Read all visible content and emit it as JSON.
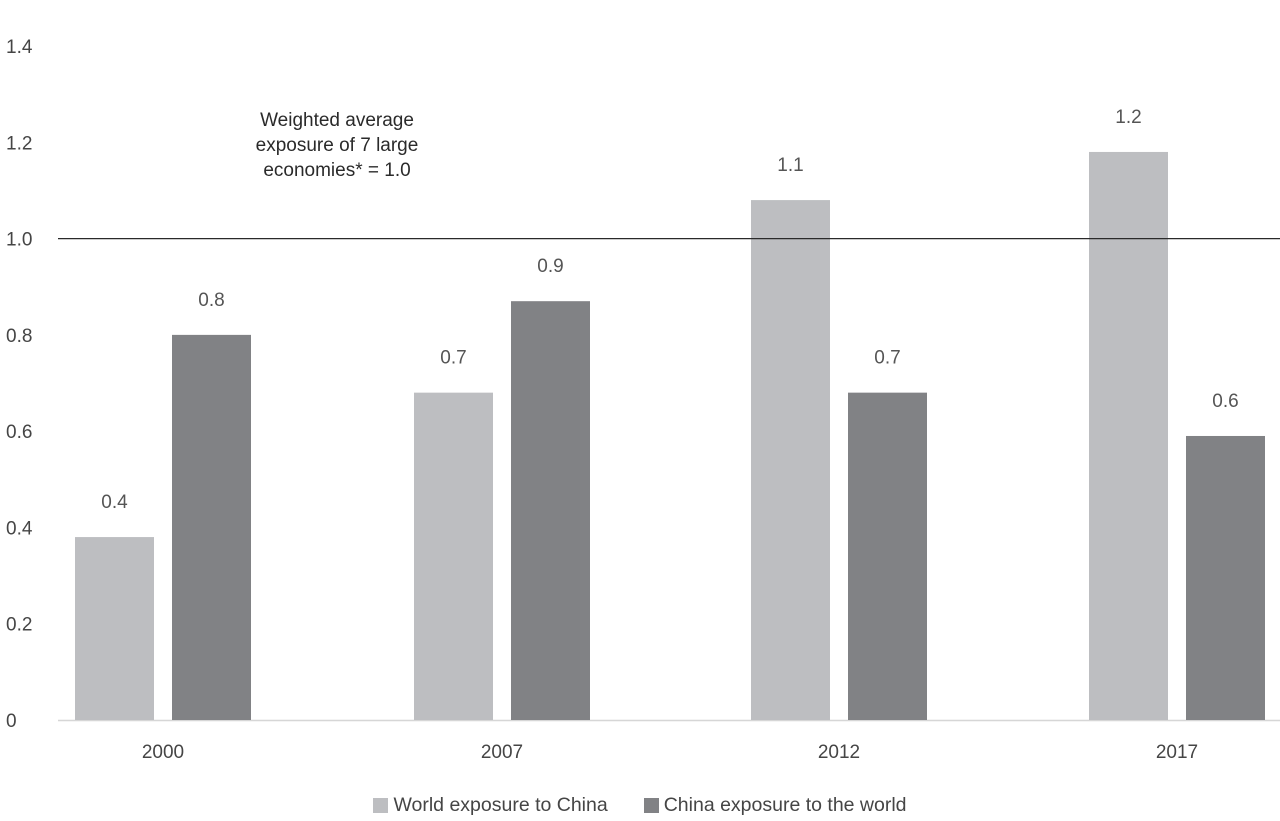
{
  "chart_data": {
    "type": "bar",
    "categories": [
      "2000",
      "2007",
      "2012",
      "2017"
    ],
    "series": [
      {
        "name": "World exposure to China",
        "color": "#bdbec1",
        "values": [
          0.38,
          0.68,
          1.08,
          1.18
        ],
        "labels": [
          "0.4",
          "0.7",
          "1.1",
          "1.2"
        ]
      },
      {
        "name": "China exposure to the world",
        "color": "#818285",
        "values": [
          0.8,
          0.87,
          0.68,
          0.59
        ],
        "labels": [
          "0.8",
          "0.9",
          "0.7",
          "0.6"
        ]
      }
    ],
    "ylim": [
      0,
      1.4
    ],
    "yticks": [
      0,
      0.2,
      0.4,
      0.6,
      0.8,
      1.0,
      1.2,
      1.4
    ],
    "ytick_labels": [
      "0",
      "0.2",
      "0.4",
      "0.6",
      "0.8",
      "1.0",
      "1.2",
      "1.4"
    ],
    "reference_line": {
      "value": 1.0,
      "color": "#2a2a2a",
      "annotation": [
        "Weighted average",
        "exposure of 7 large",
        "economies* = 1.0"
      ]
    },
    "legend_position": "bottom-center",
    "grid": false
  }
}
